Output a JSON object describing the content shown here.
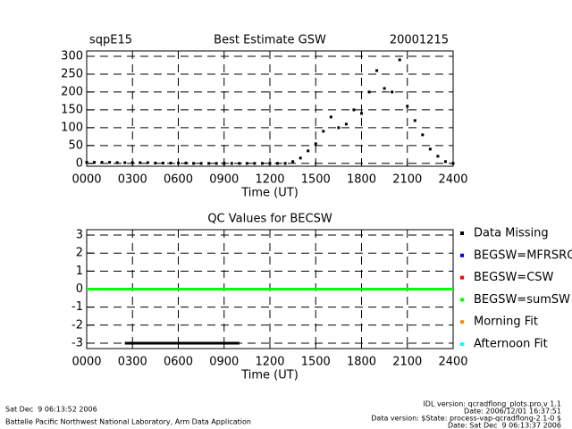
{
  "chart_data": [
    {
      "type": "scatter",
      "title": "Best Estimate GSW",
      "site": "sqpE15",
      "date": "20001215",
      "x_label": "Time (UT)",
      "xlim": [
        0,
        24
      ],
      "ylim": [
        -8,
        315
      ],
      "xticks": [
        {
          "value": 0,
          "label": "0000"
        },
        {
          "value": 3,
          "label": "0300"
        },
        {
          "value": 6,
          "label": "0600"
        },
        {
          "value": 9,
          "label": "0900"
        },
        {
          "value": 12,
          "label": "1200"
        },
        {
          "value": 15,
          "label": "1500"
        },
        {
          "value": 18,
          "label": "1800"
        },
        {
          "value": 21,
          "label": "2100"
        },
        {
          "value": 24,
          "label": "2400"
        }
      ],
      "yticks": [
        0,
        50,
        100,
        150,
        200,
        250,
        300
      ],
      "grid": true,
      "series": [
        {
          "color": "#000000",
          "x": [
            0,
            0.5,
            1,
            1.5,
            2,
            2.5,
            3,
            3.5,
            4,
            4.5,
            5,
            5.5,
            6,
            6.5,
            7,
            7.5,
            8,
            8.5,
            9,
            9.5,
            10,
            10.5,
            11,
            11.5,
            12,
            12.5,
            13,
            13.5,
            14,
            14.5,
            15,
            15.5,
            16,
            16.5,
            17,
            17.5,
            18,
            18.5,
            19,
            19.5,
            20,
            20.5,
            21,
            21.5,
            22,
            22.5,
            23,
            23.5,
            24
          ],
          "values": [
            3,
            3,
            3,
            3,
            2,
            2,
            2,
            2,
            2,
            1,
            1,
            1,
            1,
            1,
            0,
            0,
            0,
            0,
            0,
            0,
            0,
            0,
            0,
            0,
            0,
            0,
            0,
            5,
            15,
            35,
            55,
            90,
            130,
            100,
            110,
            150,
            140,
            200,
            260,
            210,
            200,
            290,
            160,
            120,
            80,
            40,
            20,
            5,
            0
          ]
        }
      ]
    },
    {
      "type": "line",
      "title": "QC Values for BECSW",
      "x_label": "Time (UT)",
      "xlim": [
        0,
        24
      ],
      "ylim": [
        -3.3,
        3.3
      ],
      "xticks": [
        {
          "value": 0,
          "label": "0000"
        },
        {
          "value": 3,
          "label": "0300"
        },
        {
          "value": 6,
          "label": "0600"
        },
        {
          "value": 9,
          "label": "0900"
        },
        {
          "value": 12,
          "label": "1200"
        },
        {
          "value": 15,
          "label": "1500"
        },
        {
          "value": 18,
          "label": "1800"
        },
        {
          "value": 21,
          "label": "2100"
        },
        {
          "value": 24,
          "label": "2400"
        }
      ],
      "yticks": [
        -3,
        -2,
        -1,
        0,
        1,
        2,
        3
      ],
      "grid": true,
      "series": [
        {
          "name": "Data Missing",
          "color": "#000000",
          "x": [
            2.5,
            3,
            3.5,
            4,
            4.5,
            5,
            5.5,
            6,
            6.5,
            7,
            7.5,
            8,
            8.5,
            9,
            9.5,
            10
          ],
          "values": [
            -3,
            -3,
            -3,
            -3,
            -3,
            -3,
            -3,
            -3,
            -3,
            -3,
            -3,
            -3,
            -3,
            -3,
            -3,
            -3
          ]
        },
        {
          "name": "BEGSW=MFRSRG",
          "color": "#0000ff",
          "x": [],
          "values": []
        },
        {
          "name": "BEGSW=CSW",
          "color": "#ff0000",
          "x": [],
          "values": []
        },
        {
          "name": "BEGSW=sumSW",
          "color": "#00ff00",
          "x": [
            0,
            0.5,
            1,
            1.5,
            2,
            2.5,
            3,
            3.5,
            4,
            4.5,
            5,
            5.5,
            6,
            6.5,
            7,
            7.5,
            8,
            8.5,
            9,
            9.5,
            10,
            10.5,
            11,
            11.5,
            12,
            12.5,
            13,
            13.5,
            14,
            14.5,
            15,
            15.5,
            16,
            16.5,
            17,
            17.5,
            18,
            18.5,
            19,
            19.5,
            20,
            20.5,
            21,
            21.5,
            22,
            22.5,
            23,
            23.5,
            24
          ],
          "values": [
            0,
            0,
            0,
            0,
            0,
            0,
            0,
            0,
            0,
            0,
            0,
            0,
            0,
            0,
            0,
            0,
            0,
            0,
            0,
            0,
            0,
            0,
            0,
            0,
            0,
            0,
            0,
            0,
            0,
            0,
            0,
            0,
            0,
            0,
            0,
            0,
            0,
            0,
            0,
            0,
            0,
            0,
            0,
            0,
            0,
            0,
            0,
            0,
            0
          ]
        },
        {
          "name": "Morning Fit",
          "color": "#ff8c00",
          "x": [],
          "values": []
        },
        {
          "name": "Afternoon Fit",
          "color": "#00ffff",
          "x": [],
          "values": []
        }
      ]
    }
  ],
  "footer": {
    "left": [
      "Sat Dec  9 06:13:52 2006",
      "Battelle Pacific Northwest National Laboratory, Arm Data Application"
    ],
    "right": [
      "IDL version: qcradflong_plots.pro,v 1.1",
      "Date: 2006/12/01 16:37:51",
      "Data version: $State: process-vap-qcradflong-2.1-0 $",
      "Date: Sat Dec  9 06:13:37 2006"
    ]
  }
}
